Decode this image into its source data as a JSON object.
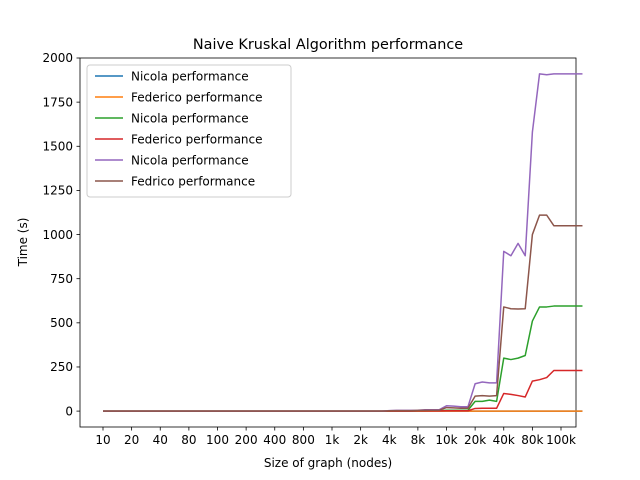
{
  "chart_data": {
    "type": "line",
    "title": "Naive Kruskal Algorithm performance",
    "xlabel": "Size of graph (nodes)",
    "ylabel": "Time (s)",
    "ylim": [
      -90,
      2000
    ],
    "yticks": [
      0,
      250,
      500,
      750,
      1000,
      1250,
      1500,
      1750,
      2000
    ],
    "grid": false,
    "legend_position": "upper-left",
    "xtick_labels": [
      "10",
      "20",
      "40",
      "80",
      "100",
      "200",
      "400",
      "800",
      "1k",
      "2k",
      "4k",
      "8k",
      "10k",
      "20k",
      "40k",
      "80k",
      "100k"
    ],
    "x_points_per_category": 4,
    "series": [
      {
        "name": "Nicola performance",
        "color": "#1f77b4",
        "values": [
          0,
          0,
          0,
          0,
          0,
          0,
          0,
          0,
          0,
          0,
          0,
          0,
          0,
          0,
          0,
          0,
          0,
          0,
          0,
          0,
          0,
          0,
          0,
          0,
          0,
          0,
          0,
          0,
          0,
          0,
          0,
          0,
          0,
          0,
          0,
          0,
          0,
          0,
          0,
          0,
          0,
          0,
          0,
          0,
          0,
          0,
          0,
          0,
          0,
          0,
          0,
          0,
          0,
          0,
          0,
          0,
          0,
          0,
          0,
          0,
          0,
          0,
          0,
          0,
          0,
          0,
          0,
          0
        ]
      },
      {
        "name": "Federico performance",
        "color": "#ff7f0e",
        "values": [
          0,
          0,
          0,
          0,
          0,
          0,
          0,
          0,
          0,
          0,
          0,
          0,
          0,
          0,
          0,
          0,
          0,
          0,
          0,
          0,
          0,
          0,
          0,
          0,
          0,
          0,
          0,
          0,
          0,
          0,
          0,
          0,
          0,
          0,
          0,
          0,
          0,
          0,
          0,
          0,
          0,
          0,
          0,
          0,
          0,
          0,
          0,
          0,
          0,
          0,
          0,
          0,
          0,
          0,
          0,
          0,
          0,
          0,
          0,
          0,
          0,
          0,
          0,
          0,
          0,
          0,
          0,
          0
        ]
      },
      {
        "name": "Nicola performance",
        "color": "#2ca02c",
        "values": [
          0,
          0,
          0,
          0,
          0,
          0,
          0,
          0,
          0,
          0,
          0,
          0,
          0,
          0,
          0,
          0,
          0,
          0,
          0,
          0,
          0,
          0,
          0,
          0,
          0,
          0,
          0,
          0,
          0,
          0,
          0,
          0,
          0,
          0,
          0,
          0,
          0,
          0,
          0,
          0,
          0,
          0,
          0,
          0,
          1,
          1,
          2,
          2,
          5,
          5,
          5,
          5,
          55,
          55,
          62,
          55,
          300,
          292,
          300,
          315,
          510,
          590,
          590,
          595,
          595,
          595,
          595,
          595
        ]
      },
      {
        "name": "Federico performance",
        "color": "#d62728",
        "values": [
          0,
          0,
          0,
          0,
          0,
          0,
          0,
          0,
          0,
          0,
          0,
          0,
          0,
          0,
          0,
          0,
          0,
          0,
          0,
          0,
          0,
          0,
          0,
          0,
          0,
          0,
          0,
          0,
          0,
          0,
          0,
          0,
          0,
          0,
          0,
          0,
          0,
          0,
          0,
          0,
          0,
          0,
          0,
          0,
          1,
          1,
          1,
          1,
          2,
          2,
          2,
          2,
          15,
          16,
          16,
          16,
          100,
          95,
          88,
          80,
          170,
          178,
          190,
          230,
          230,
          230,
          230,
          230
        ]
      },
      {
        "name": "Nicola performance",
        "color": "#9467bd",
        "values": [
          0,
          0,
          0,
          0,
          0,
          0,
          0,
          0,
          0,
          0,
          0,
          0,
          0,
          0,
          0,
          0,
          0,
          0,
          0,
          0,
          0,
          0,
          0,
          0,
          0,
          0,
          0,
          0,
          0,
          0,
          0,
          0,
          0,
          0,
          0,
          0,
          0,
          0,
          0,
          0,
          3,
          4,
          4,
          4,
          5,
          8,
          8,
          8,
          30,
          28,
          25,
          25,
          155,
          165,
          160,
          160,
          905,
          880,
          950,
          880,
          1580,
          1910,
          1905,
          1910,
          1910,
          1910,
          1910,
          1910
        ]
      },
      {
        "name": "Fedrico performance",
        "color": "#8c564b",
        "values": [
          0,
          0,
          0,
          0,
          0,
          0,
          0,
          0,
          0,
          0,
          0,
          0,
          0,
          0,
          0,
          0,
          0,
          0,
          0,
          0,
          0,
          0,
          0,
          0,
          0,
          0,
          0,
          0,
          0,
          0,
          0,
          0,
          0,
          0,
          0,
          0,
          0,
          0,
          0,
          0,
          2,
          3,
          3,
          3,
          4,
          5,
          5,
          5,
          20,
          18,
          16,
          16,
          85,
          88,
          85,
          88,
          590,
          580,
          578,
          580,
          1000,
          1110,
          1110,
          1050,
          1050,
          1050,
          1050,
          1050
        ]
      }
    ]
  }
}
